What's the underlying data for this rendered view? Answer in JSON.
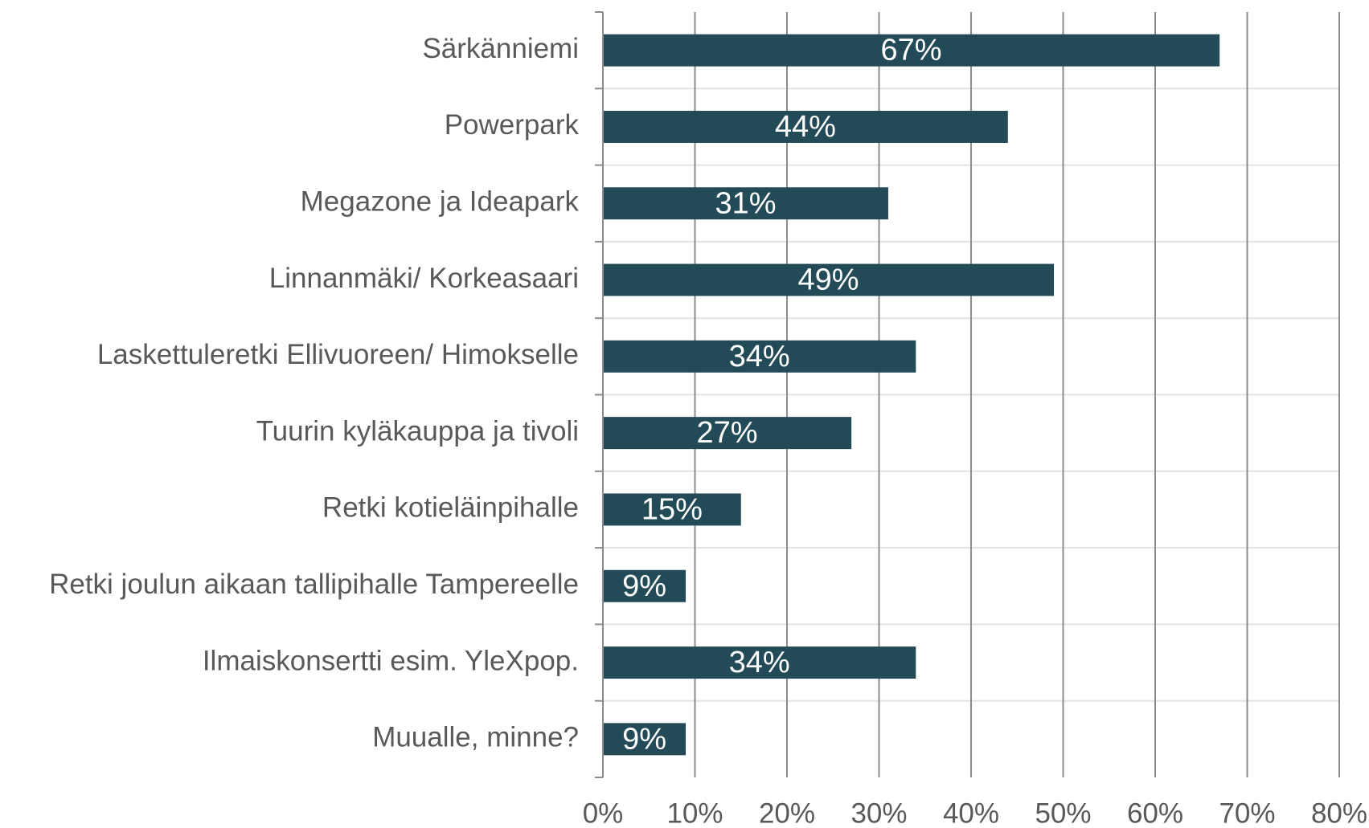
{
  "chart_data": {
    "type": "bar",
    "orientation": "horizontal",
    "categories": [
      "Särkänniemi",
      "Powerpark",
      "Megazone ja Ideapark",
      "Linnanmäki/ Korkeasaari",
      "Laskettuleretki Ellivuoreen/ Himokselle",
      "Tuurin kyläkauppa ja tivoli",
      "Retki kotieläinpihalle",
      "Retki joulun aikaan tallipihalle Tampereelle",
      "Ilmaiskonsertti esim. YleXpop.",
      "Muualle, minne?"
    ],
    "values": [
      67,
      44,
      31,
      49,
      34,
      27,
      15,
      9,
      34,
      9
    ],
    "value_labels": [
      "67%",
      "44%",
      "31%",
      "49%",
      "34%",
      "27%",
      "15%",
      "9%",
      "34%",
      "9%"
    ],
    "color": "#234a57",
    "xlim": [
      0,
      80
    ],
    "xticks": [
      {
        "value": 0,
        "label": "0%"
      },
      {
        "value": 10,
        "label": "10%"
      },
      {
        "value": 20,
        "label": "20%"
      },
      {
        "value": 30,
        "label": "30%"
      },
      {
        "value": 40,
        "label": "40%"
      },
      {
        "value": 50,
        "label": "50%"
      },
      {
        "value": 60,
        "label": "60%"
      },
      {
        "value": 70,
        "label": "70%"
      },
      {
        "value": 80,
        "label": "80%"
      }
    ],
    "grid": true
  }
}
